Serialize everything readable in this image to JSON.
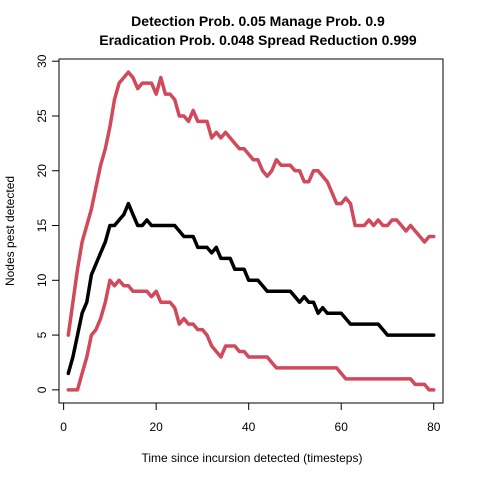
{
  "chart_data": {
    "type": "line",
    "title_lines": [
      "Detection Prob. 0.05 Manage Prob. 0.9",
      "Eradication Prob. 0.048 Spread Reduction 0.999"
    ],
    "xlabel": "Time since incursion detected (timesteps)",
    "ylabel": "Nodes pest detected",
    "xlim": [
      -1,
      82
    ],
    "ylim": [
      -1.2,
      30.2
    ],
    "xticks": [
      0,
      20,
      40,
      60,
      80
    ],
    "yticks": [
      0,
      5,
      10,
      15,
      20,
      25,
      30
    ],
    "grid": false,
    "legend": "none",
    "series": [
      {
        "color": "#D1495B",
        "values": [
          [
            1,
            5
          ],
          [
            2,
            8
          ],
          [
            3,
            11
          ],
          [
            4,
            13.5
          ],
          [
            5,
            15
          ],
          [
            6,
            16.5
          ],
          [
            7,
            18.5
          ],
          [
            8,
            20.5
          ],
          [
            9,
            22
          ],
          [
            10,
            24
          ],
          [
            11,
            26.5
          ],
          [
            12,
            28
          ],
          [
            13,
            28.5
          ],
          [
            14,
            29
          ],
          [
            15,
            28.5
          ],
          [
            16,
            27.5
          ],
          [
            17,
            28
          ],
          [
            18,
            28
          ],
          [
            19,
            28
          ],
          [
            20,
            27
          ],
          [
            21,
            28.5
          ],
          [
            22,
            27
          ],
          [
            23,
            27
          ],
          [
            24,
            26.5
          ],
          [
            25,
            25
          ],
          [
            26,
            25
          ],
          [
            27,
            24.5
          ],
          [
            28,
            25.5
          ],
          [
            29,
            24.5
          ],
          [
            30,
            24.5
          ],
          [
            31,
            24.5
          ],
          [
            32,
            23
          ],
          [
            33,
            23.5
          ],
          [
            34,
            23
          ],
          [
            35,
            23.5
          ],
          [
            36,
            23
          ],
          [
            37,
            22.5
          ],
          [
            38,
            22
          ],
          [
            39,
            22
          ],
          [
            40,
            21.5
          ],
          [
            41,
            21
          ],
          [
            42,
            21
          ],
          [
            43,
            20
          ],
          [
            44,
            19.5
          ],
          [
            45,
            20
          ],
          [
            46,
            21
          ],
          [
            47,
            20.5
          ],
          [
            48,
            20.5
          ],
          [
            49,
            20.5
          ],
          [
            50,
            20
          ],
          [
            51,
            20
          ],
          [
            52,
            19
          ],
          [
            53,
            19
          ],
          [
            54,
            20
          ],
          [
            55,
            20
          ],
          [
            56,
            19.5
          ],
          [
            57,
            19
          ],
          [
            58,
            18
          ],
          [
            59,
            17
          ],
          [
            60,
            17
          ],
          [
            61,
            17.5
          ],
          [
            62,
            17
          ],
          [
            63,
            15
          ],
          [
            64,
            15
          ],
          [
            65,
            15
          ],
          [
            66,
            15.5
          ],
          [
            67,
            15
          ],
          [
            68,
            15.5
          ],
          [
            69,
            15
          ],
          [
            70,
            15
          ],
          [
            71,
            15.5
          ],
          [
            72,
            15.5
          ],
          [
            73,
            15
          ],
          [
            74,
            14.5
          ],
          [
            75,
            15
          ],
          [
            76,
            14.5
          ],
          [
            77,
            14
          ],
          [
            78,
            13.5
          ],
          [
            79,
            14
          ],
          [
            80,
            14
          ]
        ]
      },
      {
        "color": "#000000",
        "values": [
          [
            1,
            1.5
          ],
          [
            2,
            3
          ],
          [
            3,
            5
          ],
          [
            4,
            7
          ],
          [
            5,
            8
          ],
          [
            6,
            10.5
          ],
          [
            7,
            11.5
          ],
          [
            8,
            12.5
          ],
          [
            9,
            13.5
          ],
          [
            10,
            15
          ],
          [
            11,
            15
          ],
          [
            12,
            15.5
          ],
          [
            13,
            16
          ],
          [
            14,
            17
          ],
          [
            15,
            16
          ],
          [
            16,
            15
          ],
          [
            17,
            15
          ],
          [
            18,
            15.5
          ],
          [
            19,
            15
          ],
          [
            20,
            15
          ],
          [
            21,
            15
          ],
          [
            22,
            15
          ],
          [
            23,
            15
          ],
          [
            24,
            15
          ],
          [
            25,
            14.5
          ],
          [
            26,
            14
          ],
          [
            27,
            14
          ],
          [
            28,
            14
          ],
          [
            29,
            13
          ],
          [
            30,
            13
          ],
          [
            31,
            13
          ],
          [
            32,
            12.5
          ],
          [
            33,
            13
          ],
          [
            34,
            12
          ],
          [
            35,
            12
          ],
          [
            36,
            12
          ],
          [
            37,
            11
          ],
          [
            38,
            11
          ],
          [
            39,
            11
          ],
          [
            40,
            10
          ],
          [
            41,
            10
          ],
          [
            42,
            10
          ],
          [
            43,
            9.5
          ],
          [
            44,
            9
          ],
          [
            45,
            9
          ],
          [
            46,
            9
          ],
          [
            47,
            9
          ],
          [
            48,
            9
          ],
          [
            49,
            9
          ],
          [
            50,
            8.5
          ],
          [
            51,
            8
          ],
          [
            52,
            8.5
          ],
          [
            53,
            8
          ],
          [
            54,
            8
          ],
          [
            55,
            7
          ],
          [
            56,
            7.5
          ],
          [
            57,
            7
          ],
          [
            58,
            7
          ],
          [
            59,
            7
          ],
          [
            60,
            7
          ],
          [
            61,
            6.5
          ],
          [
            62,
            6
          ],
          [
            63,
            6
          ],
          [
            64,
            6
          ],
          [
            65,
            6
          ],
          [
            66,
            6
          ],
          [
            67,
            6
          ],
          [
            68,
            6
          ],
          [
            69,
            5.5
          ],
          [
            70,
            5
          ],
          [
            71,
            5
          ],
          [
            72,
            5
          ],
          [
            73,
            5
          ],
          [
            74,
            5
          ],
          [
            75,
            5
          ],
          [
            76,
            5
          ],
          [
            77,
            5
          ],
          [
            78,
            5
          ],
          [
            79,
            5
          ],
          [
            80,
            5
          ]
        ]
      },
      {
        "color": "#D1495B",
        "values": [
          [
            1,
            0
          ],
          [
            2,
            0
          ],
          [
            3,
            0
          ],
          [
            4,
            1.5
          ],
          [
            5,
            3
          ],
          [
            6,
            5
          ],
          [
            7,
            5.5
          ],
          [
            8,
            6.5
          ],
          [
            9,
            8
          ],
          [
            10,
            10
          ],
          [
            11,
            9.5
          ],
          [
            12,
            10
          ],
          [
            13,
            9.5
          ],
          [
            14,
            9.5
          ],
          [
            15,
            9
          ],
          [
            16,
            9
          ],
          [
            17,
            9
          ],
          [
            18,
            9
          ],
          [
            19,
            8.5
          ],
          [
            20,
            9
          ],
          [
            21,
            8
          ],
          [
            22,
            8
          ],
          [
            23,
            8
          ],
          [
            24,
            7.5
          ],
          [
            25,
            6
          ],
          [
            26,
            6.5
          ],
          [
            27,
            6
          ],
          [
            28,
            6
          ],
          [
            29,
            5.5
          ],
          [
            30,
            5.5
          ],
          [
            31,
            5
          ],
          [
            32,
            4
          ],
          [
            33,
            3.5
          ],
          [
            34,
            3
          ],
          [
            35,
            4
          ],
          [
            36,
            4
          ],
          [
            37,
            4
          ],
          [
            38,
            3.5
          ],
          [
            39,
            3.5
          ],
          [
            40,
            3
          ],
          [
            41,
            3
          ],
          [
            42,
            3
          ],
          [
            43,
            3
          ],
          [
            44,
            3
          ],
          [
            45,
            2.5
          ],
          [
            46,
            2
          ],
          [
            47,
            2
          ],
          [
            48,
            2
          ],
          [
            49,
            2
          ],
          [
            50,
            2
          ],
          [
            51,
            2
          ],
          [
            52,
            2
          ],
          [
            53,
            2
          ],
          [
            54,
            2
          ],
          [
            55,
            2
          ],
          [
            56,
            2
          ],
          [
            57,
            2
          ],
          [
            58,
            2
          ],
          [
            59,
            2
          ],
          [
            60,
            1.5
          ],
          [
            61,
            1
          ],
          [
            62,
            1
          ],
          [
            63,
            1
          ],
          [
            64,
            1
          ],
          [
            65,
            1
          ],
          [
            66,
            1
          ],
          [
            67,
            1
          ],
          [
            68,
            1
          ],
          [
            69,
            1
          ],
          [
            70,
            1
          ],
          [
            71,
            1
          ],
          [
            72,
            1
          ],
          [
            73,
            1
          ],
          [
            74,
            1
          ],
          [
            75,
            1
          ],
          [
            76,
            0.5
          ],
          [
            77,
            0.5
          ],
          [
            78,
            0.5
          ],
          [
            79,
            0
          ],
          [
            80,
            0
          ]
        ]
      }
    ]
  }
}
